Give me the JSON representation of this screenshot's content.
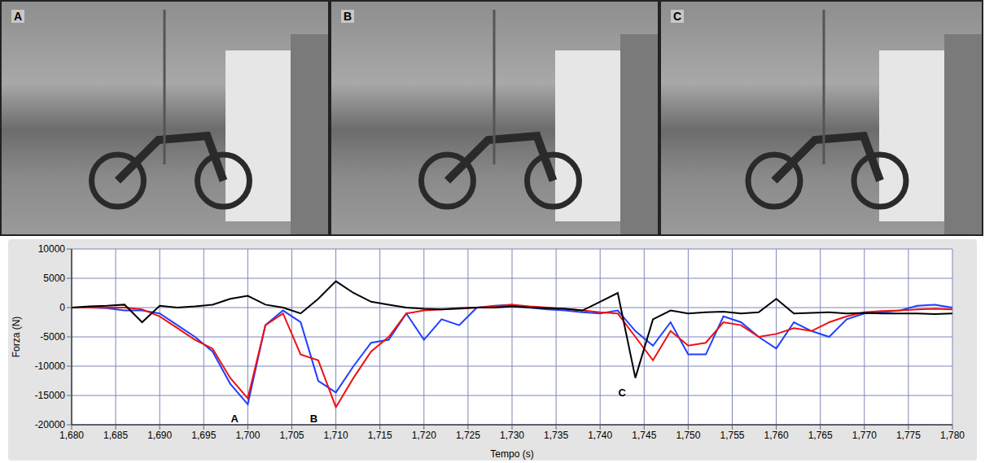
{
  "panels": [
    {
      "label": "A"
    },
    {
      "label": "B"
    },
    {
      "label": "C"
    }
  ],
  "chart_data": {
    "type": "line",
    "x_label": "Tempo (s)",
    "y_label": "Forza (N)",
    "x": [
      1.68,
      1.682,
      1.684,
      1.686,
      1.688,
      1.69,
      1.692,
      1.694,
      1.696,
      1.698,
      1.7,
      1.702,
      1.704,
      1.706,
      1.708,
      1.71,
      1.712,
      1.714,
      1.716,
      1.718,
      1.72,
      1.722,
      1.724,
      1.726,
      1.728,
      1.73,
      1.732,
      1.734,
      1.736,
      1.738,
      1.74,
      1.742,
      1.744,
      1.746,
      1.748,
      1.75,
      1.752,
      1.754,
      1.756,
      1.758,
      1.76,
      1.762,
      1.764,
      1.766,
      1.768,
      1.77,
      1.772,
      1.774,
      1.776,
      1.778,
      1.78
    ],
    "series": [
      {
        "color": "#1f3fff",
        "values": [
          0,
          0,
          -100,
          -500,
          -500,
          -1000,
          -3000,
          -5000,
          -7500,
          -13000,
          -16500,
          -3000,
          -500,
          -2500,
          -12500,
          -14500,
          -10000,
          -6000,
          -5500,
          -1000,
          -5500,
          -2000,
          -3000,
          0,
          300,
          500,
          0,
          -300,
          -500,
          -800,
          -1000,
          -500,
          -4000,
          -6500,
          -2500,
          -8000,
          -8000,
          -1500,
          -2500,
          -5000,
          -7000,
          -2500,
          -4000,
          -5000,
          -2000,
          -1000,
          -800,
          -500,
          300,
          500,
          0
        ]
      },
      {
        "color": "#ee1111",
        "values": [
          0,
          0,
          0,
          0,
          -300,
          -1500,
          -3500,
          -5500,
          -7000,
          -12000,
          -15500,
          -3000,
          -1000,
          -8000,
          -9000,
          -17000,
          -12000,
          -7500,
          -5000,
          -1000,
          -500,
          -300,
          -200,
          0,
          200,
          500,
          200,
          0,
          -200,
          -500,
          -800,
          -1000,
          -5000,
          -9000,
          -4000,
          -6500,
          -6000,
          -2500,
          -3000,
          -5000,
          -4500,
          -3500,
          -4000,
          -2500,
          -1500,
          -800,
          -600,
          -500,
          -300,
          -200,
          -300
        ]
      },
      {
        "color": "#000000",
        "values": [
          0,
          200,
          300,
          500,
          -2500,
          300,
          0,
          200,
          500,
          1500,
          2000,
          500,
          0,
          -1000,
          1500,
          4500,
          2500,
          1000,
          500,
          0,
          -200,
          -300,
          -100,
          0,
          0,
          200,
          0,
          -100,
          -200,
          -500,
          1000,
          2500,
          -12000,
          -2000,
          -500,
          -1000,
          -800,
          -700,
          -1000,
          -800,
          1500,
          -1000,
          -900,
          -800,
          -1000,
          -900,
          -1000,
          -1000,
          -1000,
          -1100,
          -1000
        ]
      }
    ],
    "xlim": [
      1.68,
      1.78
    ],
    "xticks": [
      {
        "value": 1.68,
        "label": "1,680"
      },
      {
        "value": 1.685,
        "label": "1,685"
      },
      {
        "value": 1.69,
        "label": "1,690"
      },
      {
        "value": 1.695,
        "label": "1,695"
      },
      {
        "value": 1.7,
        "label": "1,700"
      },
      {
        "value": 1.705,
        "label": "1,705"
      },
      {
        "value": 1.71,
        "label": "1,710"
      },
      {
        "value": 1.715,
        "label": "1,715"
      },
      {
        "value": 1.72,
        "label": "1,720"
      },
      {
        "value": 1.725,
        "label": "1,725"
      },
      {
        "value": 1.73,
        "label": "1,730"
      },
      {
        "value": 1.735,
        "label": "1,735"
      },
      {
        "value": 1.74,
        "label": "1,740"
      },
      {
        "value": 1.745,
        "label": "1,745"
      },
      {
        "value": 1.75,
        "label": "1,750"
      },
      {
        "value": 1.755,
        "label": "1,755"
      },
      {
        "value": 1.76,
        "label": "1,760"
      },
      {
        "value": 1.765,
        "label": "1,765"
      },
      {
        "value": 1.77,
        "label": "1,770"
      },
      {
        "value": 1.775,
        "label": "1,775"
      },
      {
        "value": 1.78,
        "label": "1,780"
      }
    ],
    "ylim": [
      -20000,
      10000
    ],
    "yticks": [
      -20000,
      -15000,
      -10000,
      -5000,
      0,
      5000,
      10000
    ],
    "grid": true,
    "annotations": [
      {
        "text": "A",
        "x": 1.6985,
        "y": -19000
      },
      {
        "text": "B",
        "x": 1.7075,
        "y": -19000
      },
      {
        "text": "C",
        "x": 1.7425,
        "y": -14500
      }
    ]
  }
}
